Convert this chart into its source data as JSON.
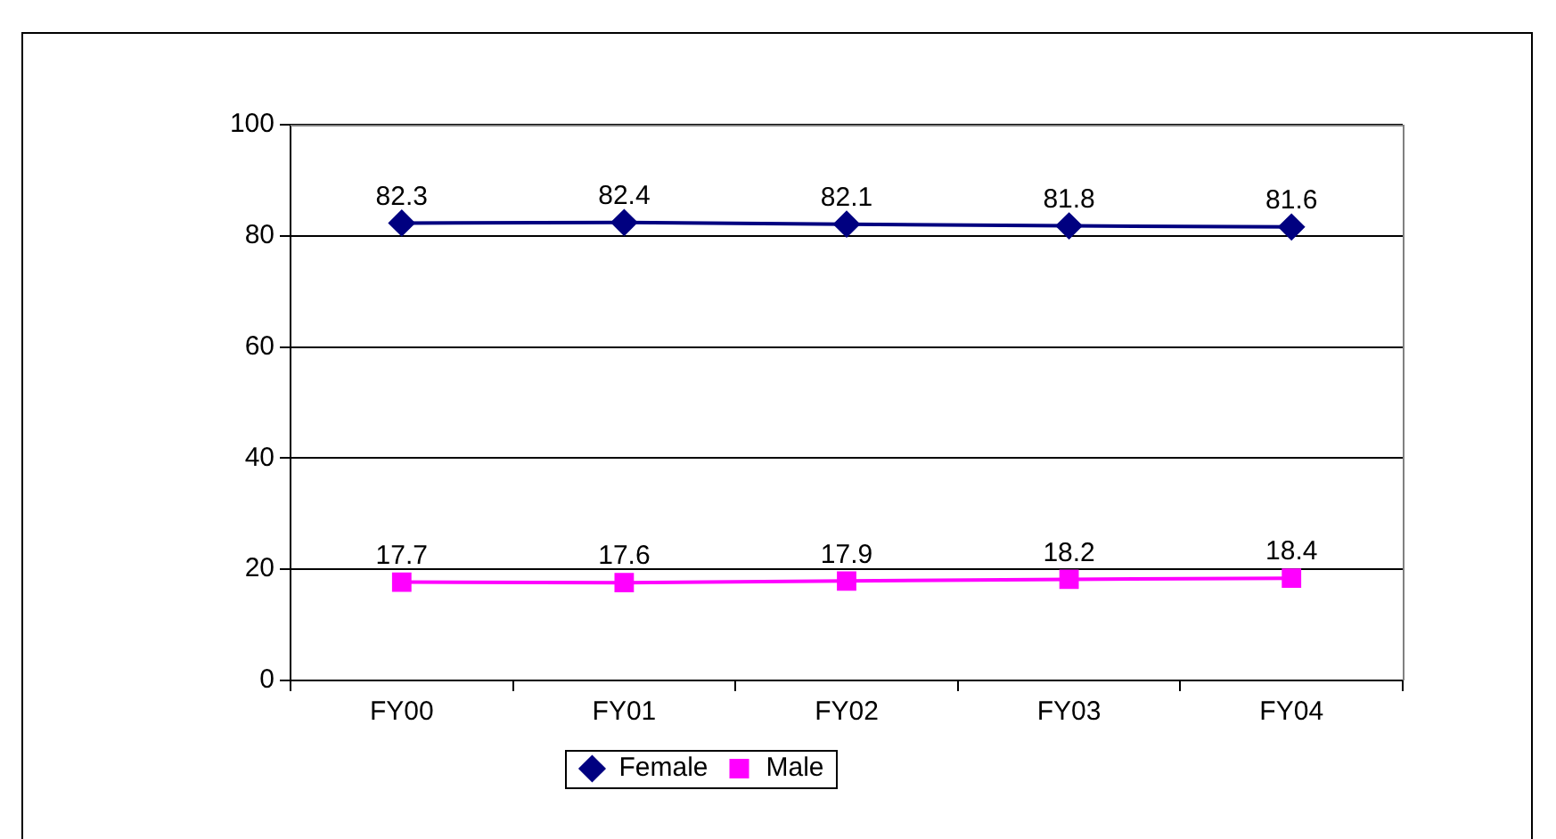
{
  "chart_data": {
    "type": "line",
    "categories": [
      "FY00",
      "FY01",
      "FY02",
      "FY03",
      "FY04"
    ],
    "series": [
      {
        "name": "Female",
        "color": "#000080",
        "values": [
          82.3,
          82.4,
          82.1,
          81.8,
          81.6
        ],
        "marker": "diamond"
      },
      {
        "name": "Male",
        "color": "#ff00ff",
        "values": [
          17.7,
          17.6,
          17.9,
          18.2,
          18.4
        ],
        "marker": "square"
      }
    ],
    "ylim": [
      0,
      100
    ],
    "yticks": [
      0,
      20,
      40,
      60,
      80,
      100
    ],
    "grid": "y",
    "legend": "bottom",
    "data_labels": true,
    "line_style": "solid"
  }
}
